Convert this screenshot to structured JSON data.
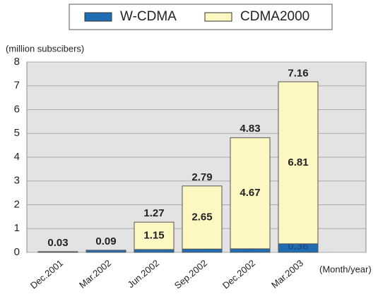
{
  "chart_data": {
    "type": "stacked_bar",
    "y_label": "(million subscibers)",
    "x_label": "(Month/year)",
    "categories": [
      "Dec.2001",
      "Mar.2002",
      "Jun.2002",
      "Sep.2002",
      "Dec.2002",
      "Mar.2003"
    ],
    "series": [
      {
        "name": "W-CDMA",
        "color": "#1f6db3",
        "values": [
          0.03,
          0.09,
          0.12,
          0.14,
          0.15,
          0.36
        ]
      },
      {
        "name": "CDMA2000",
        "color": "#fdf8c2",
        "values": [
          null,
          null,
          1.15,
          2.65,
          4.67,
          6.81
        ]
      }
    ],
    "totals": [
      0.03,
      0.09,
      1.27,
      2.79,
      4.83,
      7.16
    ],
    "ylim": [
      0,
      8
    ],
    "yticks": [
      0,
      1,
      2,
      3,
      4,
      5,
      6,
      7,
      8
    ],
    "grid": true,
    "legend": "top"
  }
}
